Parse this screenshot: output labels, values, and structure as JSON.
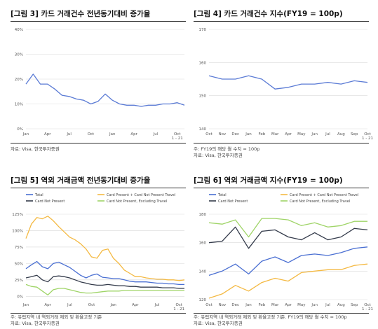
{
  "panels": [
    {
      "title": "[그림 3] 카드 거래건수 전년동기대비 증가율",
      "notes": [
        "자료: Visa, 한국투자증권"
      ]
    },
    {
      "title": "[그림 4] 카드 거래건수 지수(FY19 = 100p)",
      "notes": [
        "주: FY19의 해당 월 수치 = 100p",
        "자료: Visa, 한국투자증권"
      ]
    },
    {
      "title": "[그림 5] 역외 거래금액 전년동기대비 증가율",
      "notes": [
        "주: 유럽지역 내 역외거래 제외 및 환율고정 기준",
        "자료: Visa, 한국투자증권"
      ]
    },
    {
      "title": "[그림 6] 역외 거래금액 지수(FY19 = 100p)",
      "notes": [
        "주: 유럽지역 내 역외거래 제외 및 환율고정 기준. FY19의 해당 월 수치 = 100p",
        "자료: Visa, 한국투자증권"
      ]
    }
  ],
  "chart_data": [
    {
      "type": "line",
      "x": [
        0,
        1,
        2,
        3,
        4,
        5,
        6,
        7,
        8,
        9,
        10,
        11,
        12,
        13,
        14,
        15,
        16,
        17,
        18,
        19,
        20,
        21,
        22
      ],
      "xtick_labels": [
        "Jan",
        "Apr",
        "Jul",
        "Oct",
        "Jan",
        "Apr",
        "Jul",
        "Oct\n1 - 21"
      ],
      "xtick_positions": [
        0,
        3,
        6,
        9,
        12,
        15,
        18,
        21
      ],
      "ylim": [
        0,
        40
      ],
      "yticks": [
        0,
        10,
        20,
        30,
        40
      ],
      "ytick_labels": [
        "0%",
        "10%",
        "20%",
        "30%",
        "40%"
      ],
      "grid": true,
      "series": [
        {
          "name": "",
          "color": "#5b7bd5",
          "values": [
            18,
            22,
            18,
            18,
            16,
            13.5,
            13,
            12,
            11.5,
            10,
            11,
            14,
            11.5,
            10,
            9.5,
            9.5,
            9,
            9.5,
            9.5,
            10,
            10,
            10.5,
            9.5
          ]
        }
      ]
    },
    {
      "type": "line",
      "x": [
        0,
        1,
        2,
        3,
        4,
        5,
        6,
        7,
        8,
        9,
        10,
        11,
        12
      ],
      "xtick_labels": [
        "Oct",
        "Nov",
        "Dec",
        "Jan",
        "Feb",
        "Mar",
        "Apr",
        "May",
        "Jun",
        "Jul",
        "Aug",
        "Sep",
        "Oct\n1 - 21"
      ],
      "ylim": [
        140,
        170
      ],
      "yticks": [
        140,
        150,
        160,
        170
      ],
      "ytick_labels": [
        "140",
        "150",
        "160",
        "170"
      ],
      "grid": true,
      "series": [
        {
          "name": "",
          "color": "#5b7bd5",
          "values": [
            156,
            155,
            155,
            156,
            155,
            152,
            152.5,
            153.5,
            153.5,
            154,
            153.5,
            154.5,
            154
          ]
        }
      ]
    },
    {
      "type": "line",
      "x": [
        0,
        1,
        2,
        3,
        4,
        5,
        6,
        7,
        8,
        9,
        10,
        11,
        12,
        13,
        14,
        15,
        16,
        17,
        18,
        19,
        20,
        21,
        22,
        23,
        24,
        25,
        26,
        27,
        28,
        29
      ],
      "xtick_labels": [
        "Jan",
        "Apr",
        "Jul",
        "Oct",
        "Jan",
        "Apr",
        "Jul",
        "Oct\n1 - 21"
      ],
      "xtick_positions": [
        0,
        4,
        8,
        12,
        16,
        20,
        24,
        28
      ],
      "ylim": [
        -5,
        125
      ],
      "yticks": [
        0,
        25,
        50,
        75,
        100,
        125
      ],
      "ytick_labels": [
        "0%",
        "25%",
        "50%",
        "75%",
        "100%",
        "125%"
      ],
      "grid": true,
      "legend": "top",
      "series": [
        {
          "name": "Total",
          "color": "#4a6fd2",
          "values": [
            42,
            48,
            53,
            45,
            42,
            50,
            52,
            48,
            44,
            38,
            32,
            28,
            32,
            34,
            29,
            28,
            27,
            27,
            25,
            23,
            22,
            22,
            22,
            21,
            20,
            20,
            19,
            19,
            18,
            18
          ]
        },
        {
          "name": "Card Present + Card Not Present Travel",
          "color": "#f4b942",
          "values": [
            88,
            110,
            120,
            118,
            122,
            115,
            106,
            98,
            90,
            86,
            80,
            72,
            60,
            58,
            70,
            72,
            58,
            50,
            40,
            35,
            30,
            30,
            28,
            27,
            26,
            26,
            25,
            25,
            24,
            25
          ]
        },
        {
          "name": "Card Not Present",
          "color": "#333a4a",
          "values": [
            28,
            30,
            32,
            25,
            22,
            30,
            31,
            30,
            28,
            25,
            22,
            20,
            18,
            17,
            17,
            18,
            17,
            16,
            16,
            15,
            15,
            14,
            14,
            14,
            14,
            13,
            13,
            13,
            12,
            12
          ]
        },
        {
          "name": "Card Not Present, Excluding Travel",
          "color": "#9fd467",
          "values": [
            18,
            15,
            14,
            8,
            2,
            10,
            12,
            12,
            10,
            8,
            6,
            5,
            5,
            6,
            7,
            8,
            8,
            8,
            9,
            9,
            9,
            9,
            9,
            9,
            9,
            9,
            9,
            9,
            9,
            9
          ]
        }
      ]
    },
    {
      "type": "line",
      "x": [
        0,
        1,
        2,
        3,
        4,
        5,
        6,
        7,
        8,
        9,
        10,
        11,
        12
      ],
      "xtick_labels": [
        "Oct",
        "Nov",
        "Dec",
        "Jan",
        "Feb",
        "Mar",
        "Apr",
        "May",
        "Jun",
        "Jul",
        "Aug",
        "Sep",
        "Oct\n1 - 21"
      ],
      "ylim": [
        120,
        180
      ],
      "yticks": [
        120,
        140,
        160,
        180
      ],
      "ytick_labels": [
        "120",
        "140",
        "160",
        "180"
      ],
      "grid": true,
      "legend": "top",
      "series": [
        {
          "name": "Total",
          "color": "#4a6fd2",
          "values": [
            137,
            140,
            145,
            138,
            147,
            150,
            146,
            151,
            152,
            151,
            153,
            156,
            157
          ]
        },
        {
          "name": "Card Present + Card Not Present Travel",
          "color": "#f4b942",
          "values": [
            121,
            124,
            130,
            126,
            132,
            135,
            133,
            139,
            140,
            141,
            141,
            144,
            145
          ]
        },
        {
          "name": "Card Not Present",
          "color": "#333a4a",
          "values": [
            160,
            161,
            171,
            156,
            168,
            169,
            164,
            162,
            167,
            162,
            164,
            170,
            169
          ]
        },
        {
          "name": "Card Not Present, Excluding Travel",
          "color": "#9fd467",
          "values": [
            174,
            173,
            176,
            164,
            177,
            177,
            176,
            172,
            174,
            171,
            172,
            175,
            175
          ]
        }
      ]
    }
  ]
}
